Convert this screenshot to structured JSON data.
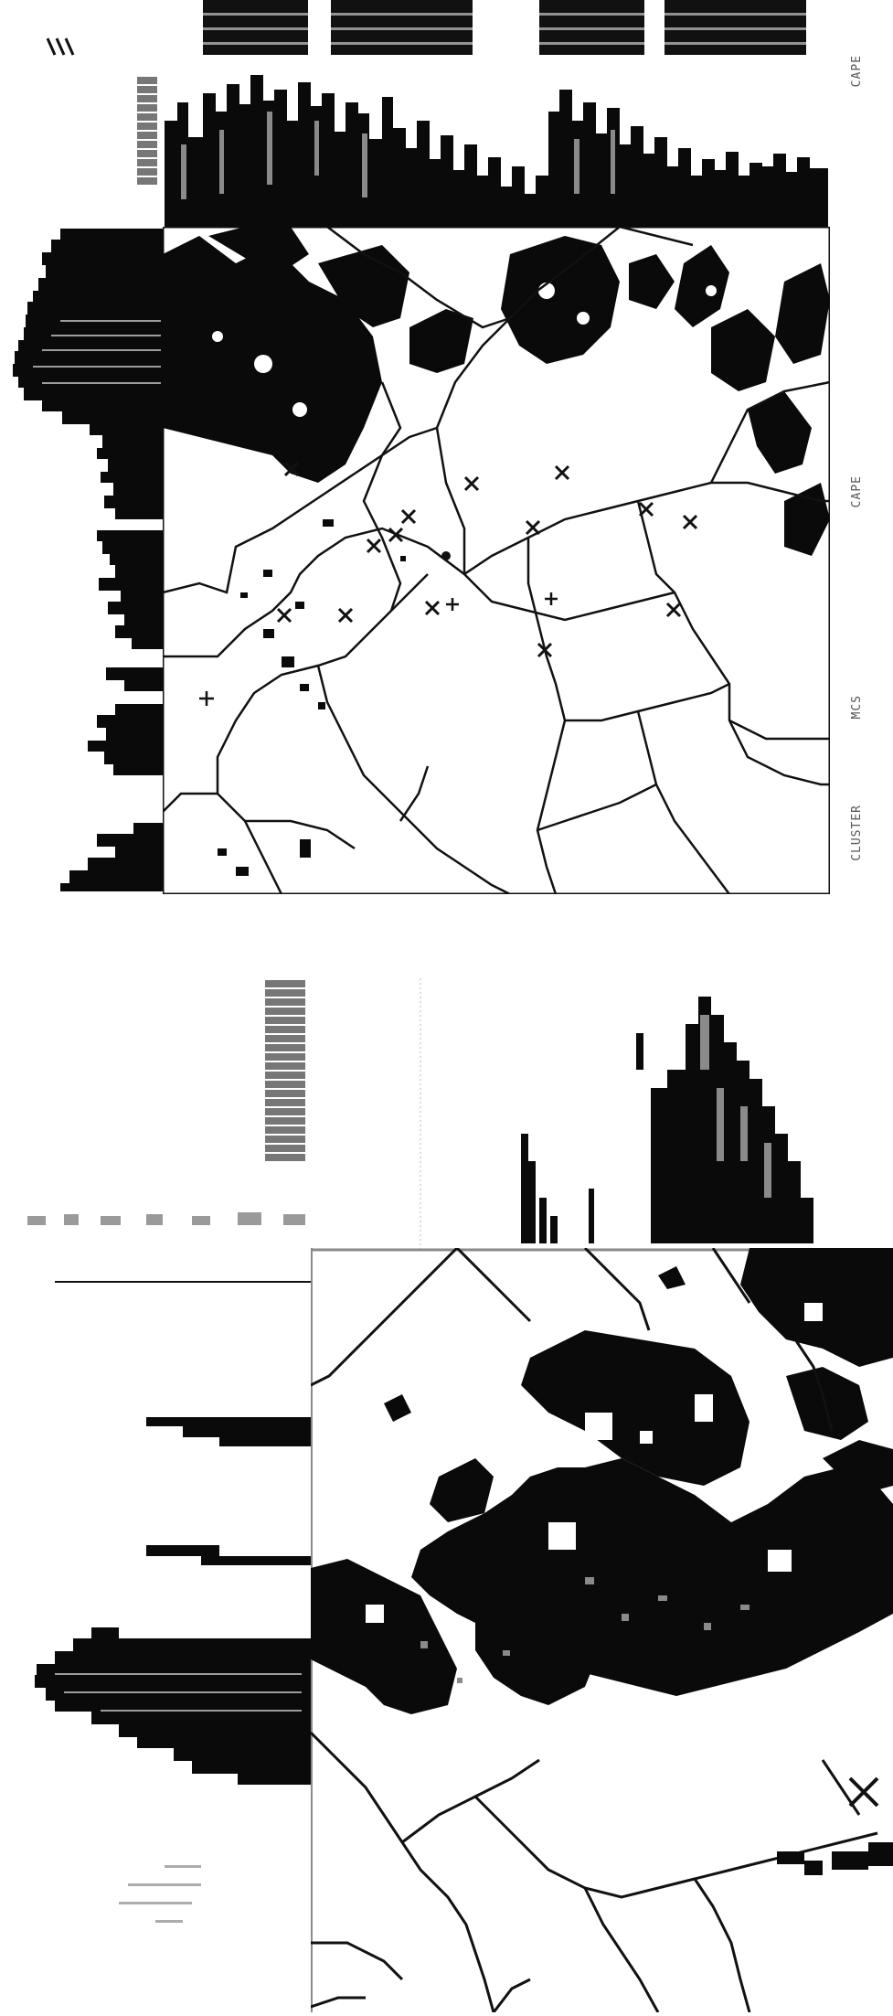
{
  "page": {
    "background": "#ffffff",
    "ink": "#0a0a0a",
    "halftone": "#8a8a8a"
  },
  "top_panel": {
    "legend_blocks": 4,
    "side_labels": [
      "CAPE",
      "CAPE",
      "MCS",
      "CLUSTER"
    ],
    "station_marker_icon": "x-mark-icon",
    "plus_marker_icon": "plus-icon"
  },
  "bottom_panel": {
    "station_marker_icon": "x-mark-icon"
  }
}
